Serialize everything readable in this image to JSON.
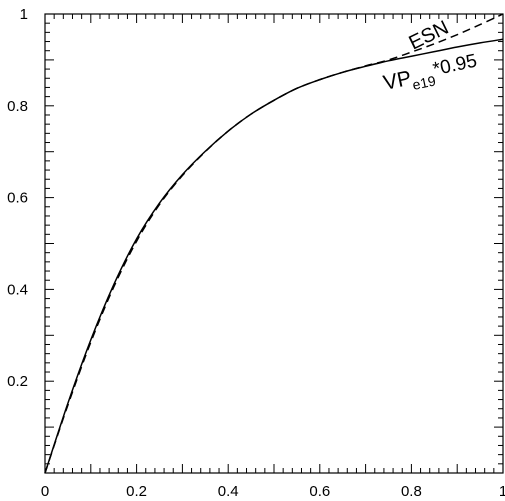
{
  "chart_data": {
    "type": "line",
    "title": "",
    "xlabel": "",
    "ylabel": "",
    "xlim": [
      0,
      1
    ],
    "ylim": [
      0,
      1
    ],
    "grid": false,
    "x_ticks": [
      {
        "value": 0,
        "label": "0"
      },
      {
        "value": 0.2,
        "label": "0.2"
      },
      {
        "value": 0.4,
        "label": "0.4"
      },
      {
        "value": 0.6,
        "label": "0.6"
      },
      {
        "value": 0.8,
        "label": "0.8"
      },
      {
        "value": 1,
        "label": "1"
      }
    ],
    "y_ticks": [
      {
        "value": 0.2,
        "label": "0.2"
      },
      {
        "value": 0.4,
        "label": "0.4"
      },
      {
        "value": 0.6,
        "label": "0.6"
      },
      {
        "value": 0.8,
        "label": "0.8"
      },
      {
        "value": 1,
        "label": "1"
      }
    ],
    "series": [
      {
        "name": "ESN",
        "style": "dashed",
        "color": "#000000",
        "x": [
          0,
          0.05,
          0.1,
          0.15,
          0.2,
          0.25,
          0.3,
          0.35,
          0.4,
          0.45,
          0.5,
          0.55,
          0.6,
          0.65,
          0.7,
          0.75,
          0.8,
          0.85,
          0.9,
          0.95,
          1.0
        ],
        "y": [
          0,
          0.148,
          0.285,
          0.405,
          0.505,
          0.585,
          0.648,
          0.7,
          0.745,
          0.782,
          0.812,
          0.838,
          0.857,
          0.873,
          0.887,
          0.9,
          0.917,
          0.935,
          0.955,
          0.977,
          1.0
        ]
      },
      {
        "name": "VP_e19*0.95",
        "label_main": "VP",
        "label_sub": "e19",
        "label_suffix": "*0.95",
        "style": "solid",
        "color": "#000000",
        "x": [
          0,
          0.05,
          0.1,
          0.15,
          0.2,
          0.25,
          0.3,
          0.35,
          0.4,
          0.45,
          0.5,
          0.55,
          0.6,
          0.65,
          0.7,
          0.75,
          0.8,
          0.85,
          0.9,
          0.95,
          1.0
        ],
        "y": [
          0,
          0.152,
          0.29,
          0.41,
          0.51,
          0.588,
          0.65,
          0.701,
          0.745,
          0.782,
          0.812,
          0.838,
          0.857,
          0.873,
          0.886,
          0.898,
          0.908,
          0.918,
          0.928,
          0.937,
          0.945
        ]
      }
    ]
  }
}
